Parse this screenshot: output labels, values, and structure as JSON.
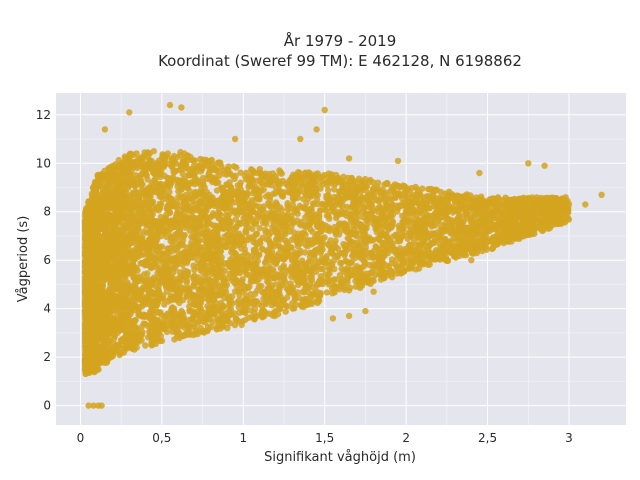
{
  "chart_data": {
    "type": "scatter",
    "title_lines": [
      "År 1979 - 2019",
      "Koordinat (Sweref 99 TM): E 462128, N 6198862"
    ],
    "xlabel": "Signifikant våghöjd (m)",
    "ylabel": "Vågperiod (s)",
    "xlim": [
      -0.15,
      3.35
    ],
    "ylim": [
      -0.8,
      12.9
    ],
    "x_ticks": [
      0,
      0.5,
      1,
      1.5,
      2,
      2.5,
      3
    ],
    "x_tick_labels": [
      "0",
      "0,5",
      "1",
      "1,5",
      "2",
      "2,5",
      "3"
    ],
    "y_ticks": [
      0,
      2,
      4,
      6,
      8,
      10,
      12
    ],
    "y_tick_labels": [
      "0",
      "2",
      "4",
      "6",
      "8",
      "10",
      "12"
    ],
    "grid": true,
    "marker_color": "#D4A520",
    "background_color": "#E5E5EE",
    "legend": "none",
    "envelope_lower": [
      {
        "x": 0.03,
        "y": 1.3
      },
      {
        "x": 0.1,
        "y": 1.4
      },
      {
        "x": 0.2,
        "y": 2.0
      },
      {
        "x": 0.5,
        "y": 2.6
      },
      {
        "x": 1.0,
        "y": 3.3
      },
      {
        "x": 1.5,
        "y": 4.3
      },
      {
        "x": 2.0,
        "y": 5.5
      },
      {
        "x": 2.5,
        "y": 6.4
      },
      {
        "x": 3.0,
        "y": 7.6
      }
    ],
    "envelope_upper": [
      {
        "x": 0.03,
        "y": 8.0
      },
      {
        "x": 0.1,
        "y": 9.5
      },
      {
        "x": 0.3,
        "y": 10.5
      },
      {
        "x": 0.6,
        "y": 10.5
      },
      {
        "x": 1.0,
        "y": 9.8
      },
      {
        "x": 1.5,
        "y": 9.6
      },
      {
        "x": 2.0,
        "y": 9.1
      },
      {
        "x": 2.5,
        "y": 8.6
      },
      {
        "x": 3.0,
        "y": 8.6
      }
    ],
    "outlier_points": [
      {
        "x": 0.05,
        "y": 0.0
      },
      {
        "x": 0.08,
        "y": 0.0
      },
      {
        "x": 0.11,
        "y": 0.0
      },
      {
        "x": 0.13,
        "y": 0.0
      },
      {
        "x": 0.55,
        "y": 12.4
      },
      {
        "x": 0.62,
        "y": 12.3
      },
      {
        "x": 0.3,
        "y": 12.1
      },
      {
        "x": 1.5,
        "y": 12.2
      },
      {
        "x": 0.15,
        "y": 11.4
      },
      {
        "x": 0.95,
        "y": 11.0
      },
      {
        "x": 1.45,
        "y": 11.4
      },
      {
        "x": 1.35,
        "y": 11.0
      },
      {
        "x": 1.65,
        "y": 10.2
      },
      {
        "x": 1.95,
        "y": 10.1
      },
      {
        "x": 2.45,
        "y": 9.6
      },
      {
        "x": 2.75,
        "y": 10.0
      },
      {
        "x": 2.85,
        "y": 9.9
      },
      {
        "x": 3.2,
        "y": 8.7
      },
      {
        "x": 3.1,
        "y": 8.3
      },
      {
        "x": 2.9,
        "y": 8.0
      },
      {
        "x": 2.5,
        "y": 7.2
      },
      {
        "x": 2.7,
        "y": 7.4
      },
      {
        "x": 2.15,
        "y": 6.3
      },
      {
        "x": 1.55,
        "y": 3.6
      },
      {
        "x": 1.65,
        "y": 3.7
      },
      {
        "x": 1.75,
        "y": 3.9
      },
      {
        "x": 1.8,
        "y": 4.7
      },
      {
        "x": 2.4,
        "y": 6.0
      },
      {
        "x": 0.04,
        "y": 2.7
      },
      {
        "x": 0.06,
        "y": 4.0
      },
      {
        "x": 0.05,
        "y": 6.5
      },
      {
        "x": 0.07,
        "y": 7.5
      }
    ]
  }
}
